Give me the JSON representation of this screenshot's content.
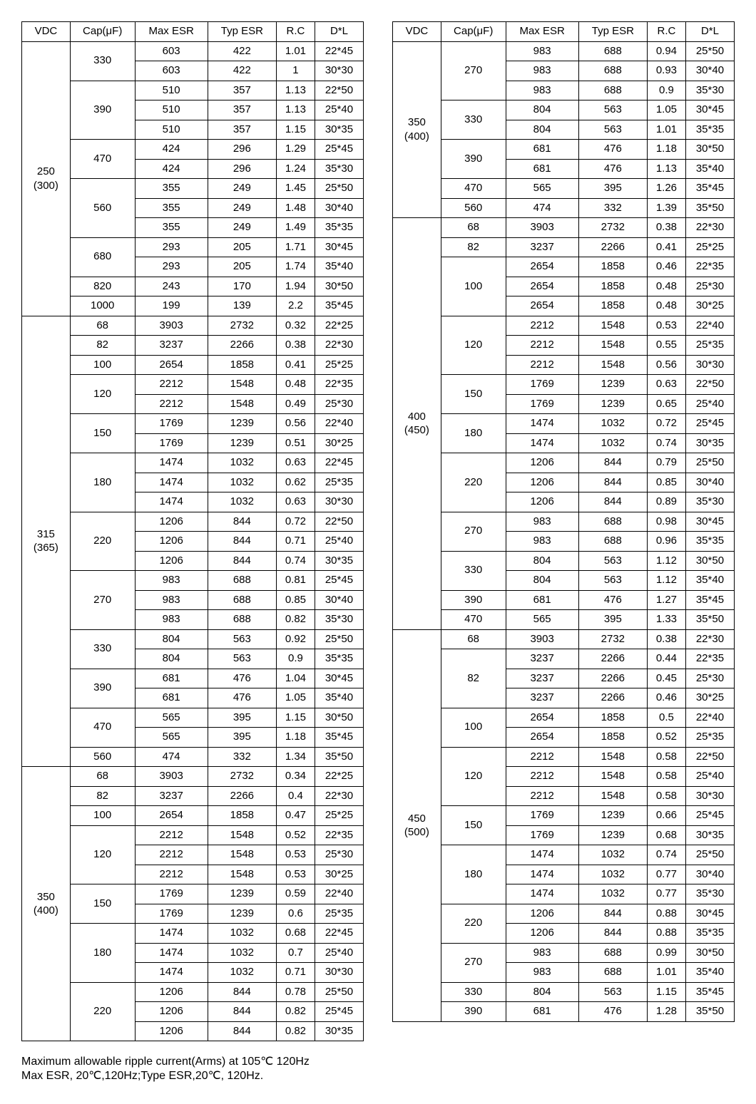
{
  "headers": [
    "VDC",
    "Cap(μF)",
    "Max ESR",
    "Typ ESR",
    "R.C",
    "D*L"
  ],
  "footnote1": "Maximum allowable ripple current(Arms) at 105℃ 120Hz",
  "footnote2": "Max ESR, 20℃,120Hz;Type ESR,20℃, 120Hz.",
  "left": [
    {
      "vdc": "250\n(300)",
      "groups": [
        {
          "cap": "330",
          "rows": [
            [
              "603",
              "422",
              "1.01",
              "22*45"
            ],
            [
              "603",
              "422",
              "1",
              "30*30"
            ]
          ]
        },
        {
          "cap": "390",
          "rows": [
            [
              "510",
              "357",
              "1.13",
              "22*50"
            ],
            [
              "510",
              "357",
              "1.13",
              "25*40"
            ],
            [
              "510",
              "357",
              "1.15",
              "30*35"
            ]
          ]
        },
        {
          "cap": "470",
          "rows": [
            [
              "424",
              "296",
              "1.29",
              "25*45"
            ],
            [
              "424",
              "296",
              "1.24",
              "35*30"
            ]
          ]
        },
        {
          "cap": "560",
          "rows": [
            [
              "355",
              "249",
              "1.45",
              "25*50"
            ],
            [
              "355",
              "249",
              "1.48",
              "30*40"
            ],
            [
              "355",
              "249",
              "1.49",
              "35*35"
            ]
          ]
        },
        {
          "cap": "680",
          "rows": [
            [
              "293",
              "205",
              "1.71",
              "30*45"
            ],
            [
              "293",
              "205",
              "1.74",
              "35*40"
            ]
          ]
        },
        {
          "cap": "820",
          "rows": [
            [
              "243",
              "170",
              "1.94",
              "30*50"
            ]
          ]
        },
        {
          "cap": "1000",
          "rows": [
            [
              "199",
              "139",
              "2.2",
              "35*45"
            ]
          ]
        }
      ]
    },
    {
      "vdc": "315\n(365)",
      "groups": [
        {
          "cap": "68",
          "rows": [
            [
              "3903",
              "2732",
              "0.32",
              "22*25"
            ]
          ]
        },
        {
          "cap": "82",
          "rows": [
            [
              "3237",
              "2266",
              "0.38",
              "22*30"
            ]
          ]
        },
        {
          "cap": "100",
          "rows": [
            [
              "2654",
              "1858",
              "0.41",
              "25*25"
            ]
          ]
        },
        {
          "cap": "120",
          "rows": [
            [
              "2212",
              "1548",
              "0.48",
              "22*35"
            ],
            [
              "2212",
              "1548",
              "0.49",
              "25*30"
            ]
          ]
        },
        {
          "cap": "150",
          "rows": [
            [
              "1769",
              "1239",
              "0.56",
              "22*40"
            ],
            [
              "1769",
              "1239",
              "0.51",
              "30*25"
            ]
          ]
        },
        {
          "cap": "180",
          "rows": [
            [
              "1474",
              "1032",
              "0.63",
              "22*45"
            ],
            [
              "1474",
              "1032",
              "0.62",
              "25*35"
            ],
            [
              "1474",
              "1032",
              "0.63",
              "30*30"
            ]
          ]
        },
        {
          "cap": "220",
          "rows": [
            [
              "1206",
              "844",
              "0.72",
              "22*50"
            ],
            [
              "1206",
              "844",
              "0.71",
              "25*40"
            ],
            [
              "1206",
              "844",
              "0.74",
              "30*35"
            ]
          ]
        },
        {
          "cap": "270",
          "rows": [
            [
              "983",
              "688",
              "0.81",
              "25*45"
            ],
            [
              "983",
              "688",
              "0.85",
              "30*40"
            ],
            [
              "983",
              "688",
              "0.82",
              "35*30"
            ]
          ]
        },
        {
          "cap": "330",
          "rows": [
            [
              "804",
              "563",
              "0.92",
              "25*50"
            ],
            [
              "804",
              "563",
              "0.9",
              "35*35"
            ]
          ]
        },
        {
          "cap": "390",
          "rows": [
            [
              "681",
              "476",
              "1.04",
              "30*45"
            ],
            [
              "681",
              "476",
              "1.05",
              "35*40"
            ]
          ]
        },
        {
          "cap": "470",
          "rows": [
            [
              "565",
              "395",
              "1.15",
              "30*50"
            ],
            [
              "565",
              "395",
              "1.18",
              "35*45"
            ]
          ]
        },
        {
          "cap": "560",
          "rows": [
            [
              "474",
              "332",
              "1.34",
              "35*50"
            ]
          ]
        }
      ]
    },
    {
      "vdc": "350\n(400)",
      "groups": [
        {
          "cap": "68",
          "rows": [
            [
              "3903",
              "2732",
              "0.34",
              "22*25"
            ]
          ]
        },
        {
          "cap": "82",
          "rows": [
            [
              "3237",
              "2266",
              "0.4",
              "22*30"
            ]
          ]
        },
        {
          "cap": "100",
          "rows": [
            [
              "2654",
              "1858",
              "0.47",
              "25*25"
            ]
          ]
        },
        {
          "cap": "120",
          "rows": [
            [
              "2212",
              "1548",
              "0.52",
              "22*35"
            ],
            [
              "2212",
              "1548",
              "0.53",
              "25*30"
            ],
            [
              "2212",
              "1548",
              "0.53",
              "30*25"
            ]
          ]
        },
        {
          "cap": "150",
          "rows": [
            [
              "1769",
              "1239",
              "0.59",
              "22*40"
            ],
            [
              "1769",
              "1239",
              "0.6",
              "25*35"
            ]
          ]
        },
        {
          "cap": "180",
          "rows": [
            [
              "1474",
              "1032",
              "0.68",
              "22*45"
            ],
            [
              "1474",
              "1032",
              "0.7",
              "25*40"
            ],
            [
              "1474",
              "1032",
              "0.71",
              "30*30"
            ]
          ]
        },
        {
          "cap": "220",
          "rows": [
            [
              "1206",
              "844",
              "0.78",
              "25*50"
            ],
            [
              "1206",
              "844",
              "0.82",
              "25*45"
            ],
            [
              "1206",
              "844",
              "0.82",
              "30*35"
            ]
          ]
        }
      ]
    }
  ],
  "right": [
    {
      "vdc": "350\n(400)",
      "groups": [
        {
          "cap": "270",
          "rows": [
            [
              "983",
              "688",
              "0.94",
              "25*50"
            ],
            [
              "983",
              "688",
              "0.93",
              "30*40"
            ],
            [
              "983",
              "688",
              "0.9",
              "35*30"
            ]
          ]
        },
        {
          "cap": "330",
          "rows": [
            [
              "804",
              "563",
              "1.05",
              "30*45"
            ],
            [
              "804",
              "563",
              "1.01",
              "35*35"
            ]
          ]
        },
        {
          "cap": "390",
          "rows": [
            [
              "681",
              "476",
              "1.18",
              "30*50"
            ],
            [
              "681",
              "476",
              "1.13",
              "35*40"
            ]
          ]
        },
        {
          "cap": "470",
          "rows": [
            [
              "565",
              "395",
              "1.26",
              "35*45"
            ]
          ]
        },
        {
          "cap": "560",
          "rows": [
            [
              "474",
              "332",
              "1.39",
              "35*50"
            ]
          ]
        }
      ]
    },
    {
      "vdc": "400\n(450)",
      "groups": [
        {
          "cap": "68",
          "rows": [
            [
              "3903",
              "2732",
              "0.38",
              "22*30"
            ]
          ]
        },
        {
          "cap": "82",
          "rows": [
            [
              "3237",
              "2266",
              "0.41",
              "25*25"
            ]
          ]
        },
        {
          "cap": "100",
          "rows": [
            [
              "2654",
              "1858",
              "0.46",
              "22*35"
            ],
            [
              "2654",
              "1858",
              "0.48",
              "25*30"
            ],
            [
              "2654",
              "1858",
              "0.48",
              "30*25"
            ]
          ]
        },
        {
          "cap": "120",
          "rows": [
            [
              "2212",
              "1548",
              "0.53",
              "22*40"
            ],
            [
              "2212",
              "1548",
              "0.55",
              "25*35"
            ],
            [
              "2212",
              "1548",
              "0.56",
              "30*30"
            ]
          ]
        },
        {
          "cap": "150",
          "rows": [
            [
              "1769",
              "1239",
              "0.63",
              "22*50"
            ],
            [
              "1769",
              "1239",
              "0.65",
              "25*40"
            ]
          ]
        },
        {
          "cap": "180",
          "rows": [
            [
              "1474",
              "1032",
              "0.72",
              "25*45"
            ],
            [
              "1474",
              "1032",
              "0.74",
              "30*35"
            ]
          ]
        },
        {
          "cap": "220",
          "rows": [
            [
              "1206",
              "844",
              "0.79",
              "25*50"
            ],
            [
              "1206",
              "844",
              "0.85",
              "30*40"
            ],
            [
              "1206",
              "844",
              "0.89",
              "35*30"
            ]
          ]
        },
        {
          "cap": "270",
          "rows": [
            [
              "983",
              "688",
              "0.98",
              "30*45"
            ],
            [
              "983",
              "688",
              "0.96",
              "35*35"
            ]
          ]
        },
        {
          "cap": "330",
          "rows": [
            [
              "804",
              "563",
              "1.12",
              "30*50"
            ],
            [
              "804",
              "563",
              "1.12",
              "35*40"
            ]
          ]
        },
        {
          "cap": "390",
          "rows": [
            [
              "681",
              "476",
              "1.27",
              "35*45"
            ]
          ]
        },
        {
          "cap": "470",
          "rows": [
            [
              "565",
              "395",
              "1.33",
              "35*50"
            ]
          ]
        }
      ]
    },
    {
      "vdc": "450\n(500)",
      "groups": [
        {
          "cap": "68",
          "rows": [
            [
              "3903",
              "2732",
              "0.38",
              "22*30"
            ]
          ]
        },
        {
          "cap": "82",
          "rows": [
            [
              "3237",
              "2266",
              "0.44",
              "22*35"
            ],
            [
              "3237",
              "2266",
              "0.45",
              "25*30"
            ],
            [
              "3237",
              "2266",
              "0.46",
              "30*25"
            ]
          ]
        },
        {
          "cap": "100",
          "rows": [
            [
              "2654",
              "1858",
              "0.5",
              "22*40"
            ],
            [
              "2654",
              "1858",
              "0.52",
              "25*35"
            ]
          ]
        },
        {
          "cap": "120",
          "rows": [
            [
              "2212",
              "1548",
              "0.58",
              "22*50"
            ],
            [
              "2212",
              "1548",
              "0.58",
              "25*40"
            ],
            [
              "2212",
              "1548",
              "0.58",
              "30*30"
            ]
          ]
        },
        {
          "cap": "150",
          "rows": [
            [
              "1769",
              "1239",
              "0.66",
              "25*45"
            ],
            [
              "1769",
              "1239",
              "0.68",
              "30*35"
            ]
          ]
        },
        {
          "cap": "180",
          "rows": [
            [
              "1474",
              "1032",
              "0.74",
              "25*50"
            ],
            [
              "1474",
              "1032",
              "0.77",
              "30*40"
            ],
            [
              "1474",
              "1032",
              "0.77",
              "35*30"
            ]
          ]
        },
        {
          "cap": "220",
          "rows": [
            [
              "1206",
              "844",
              "0.88",
              "30*45"
            ],
            [
              "1206",
              "844",
              "0.88",
              "35*35"
            ]
          ]
        },
        {
          "cap": "270",
          "rows": [
            [
              "983",
              "688",
              "0.99",
              "30*50"
            ],
            [
              "983",
              "688",
              "1.01",
              "35*40"
            ]
          ]
        },
        {
          "cap": "330",
          "rows": [
            [
              "804",
              "563",
              "1.15",
              "35*45"
            ]
          ]
        },
        {
          "cap": "390",
          "rows": [
            [
              "681",
              "476",
              "1.28",
              "35*50"
            ]
          ]
        }
      ]
    }
  ]
}
